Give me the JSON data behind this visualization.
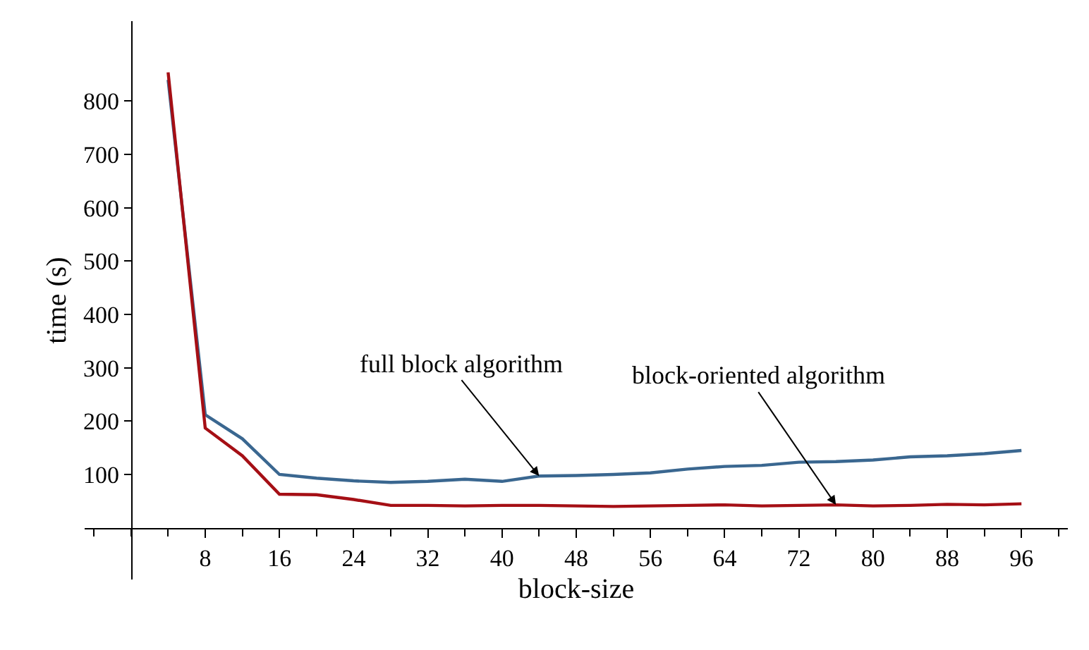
{
  "chart_data": {
    "type": "line",
    "xlabel": "block-size",
    "ylabel": "time (s)",
    "x": [
      4,
      8,
      12,
      16,
      20,
      24,
      28,
      32,
      36,
      40,
      44,
      48,
      52,
      56,
      60,
      64,
      68,
      72,
      76,
      80,
      84,
      88,
      92,
      96
    ],
    "series": [
      {
        "color": "#3a6790",
        "values": [
          840,
          212,
          167,
          100,
          93,
          88,
          85,
          87,
          91,
          87,
          97,
          98,
          100,
          103,
          110,
          115,
          117,
          123,
          124,
          127,
          133,
          135,
          139,
          145
        ]
      },
      {
        "color": "#a50f15",
        "values": [
          854,
          187,
          135,
          63,
          62,
          53,
          42,
          42,
          41,
          42,
          42,
          41,
          40,
          41,
          42,
          43,
          41,
          42,
          43,
          41,
          42,
          44,
          43,
          45
        ]
      }
    ],
    "annotations": [
      {
        "text": "full block algorithm",
        "x": 44,
        "y": 97
      },
      {
        "text": "block-oriented algorithm",
        "x": 76,
        "y": 43
      }
    ],
    "xlim": [
      -5,
      101
    ],
    "ylim": [
      -97,
      950
    ],
    "xticks": [
      8,
      16,
      24,
      32,
      40,
      48,
      56,
      64,
      72,
      80,
      88,
      96
    ],
    "yticks": [
      100,
      200,
      300,
      400,
      500,
      600,
      700,
      800
    ],
    "line_style": "solid",
    "marker": "none"
  }
}
